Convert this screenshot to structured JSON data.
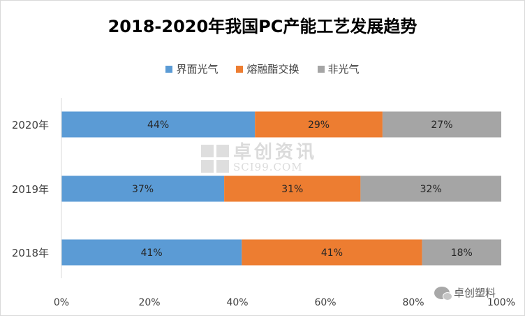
{
  "chart_data": {
    "type": "bar",
    "orientation": "horizontal",
    "stacked": true,
    "title": "2018-2020年我国PC产能工艺发展趋势",
    "categories": [
      "2020年",
      "2019年",
      "2018年"
    ],
    "series": [
      {
        "name": "界面光气",
        "color": "#5b9bd5",
        "values": [
          44,
          37,
          41
        ],
        "labels": [
          "44%",
          "37%",
          "41%"
        ]
      },
      {
        "name": "熔融酯交换",
        "color": "#ed7d31",
        "values": [
          29,
          31,
          41
        ],
        "labels": [
          "29%",
          "31%",
          "41%"
        ]
      },
      {
        "name": "非光气",
        "color": "#a5a5a5",
        "values": [
          27,
          32,
          18
        ],
        "labels": [
          "27%",
          "32%",
          "18%"
        ]
      }
    ],
    "x_ticks": [
      "0%",
      "20%",
      "40%",
      "60%",
      "80%",
      "100%"
    ],
    "xlim": [
      0,
      100
    ],
    "legend": "top",
    "grid": false
  },
  "watermark": {
    "name_cn": "卓创资讯",
    "name_en": "SCI99.COM"
  },
  "brand_label": "卓创塑料"
}
